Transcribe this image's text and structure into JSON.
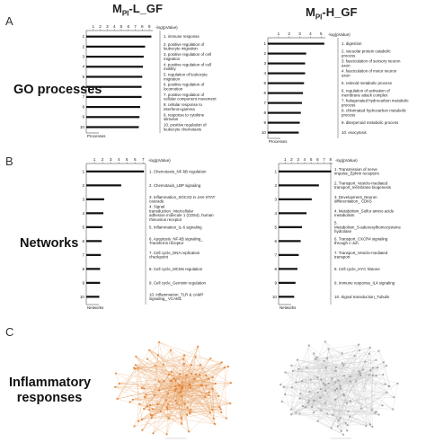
{
  "panels": {
    "a": {
      "letter": "A",
      "row_label": "GO processes"
    },
    "b": {
      "letter": "B",
      "row_label": "Networks"
    },
    "c": {
      "letter": "C",
      "row_label_lines": [
        "Inflammatory",
        "responses"
      ]
    }
  },
  "headers": {
    "left": {
      "m": "M",
      "sub": "PI",
      "suffix": "-L_GF"
    },
    "right": {
      "m": "M",
      "sub": "PI",
      "suffix": "-H_GF"
    }
  },
  "colors": {
    "bar": "#111111",
    "network_orange": "#e07b2a",
    "network_grey": "#9a9a9a",
    "edge": "#c8c8c8"
  },
  "chart_data": [
    {
      "type": "bar",
      "orientation": "horizontal",
      "panel": "A-left",
      "xlabel": "-log(pValue)",
      "footer": "Processes",
      "xticks": [
        "1",
        "2",
        "3",
        "4",
        "5",
        "6",
        "7",
        "8",
        "9"
      ],
      "xlim": [
        0,
        9.5
      ],
      "ranks": [
        "1",
        "2",
        "3",
        "4",
        "5",
        "6",
        "7",
        "8",
        "9",
        "10"
      ],
      "categories": [
        "1. immune response",
        "2. positive regulation of leukocyte migration",
        "3. positive regulation of cell migration",
        "4. positive regulation of cell motility",
        "5. regulation of leukocyte migration",
        "6. positive regulation of locomotion",
        "7. positive regulation of cellular component movement",
        "8. cellular response to interferon-gamma",
        "9. response to cytokine stimulus",
        "10. positive regulation of leukocyte chemotaxis"
      ],
      "values": [
        9.3,
        8.4,
        8.2,
        8.1,
        8.0,
        7.9,
        7.9,
        7.7,
        7.6,
        7.5
      ]
    },
    {
      "type": "bar",
      "orientation": "horizontal",
      "panel": "A-right",
      "xlabel": "-log(pValue)",
      "footer": "Processes",
      "xticks": [
        "1",
        "2",
        "3",
        "4",
        "5"
      ],
      "xlim": [
        0,
        5.4
      ],
      "ranks": [
        "1",
        "2",
        "3",
        "4",
        "5",
        "6",
        "7",
        "8",
        "9",
        "10"
      ],
      "categories": [
        "1. digestion",
        "2. vacuolar protein catabolic process",
        "3. fasciculation of sensory neuron axon",
        "4. fasciculation of motor neuron axon",
        "5. retinoid metabolic process",
        "6. regulation of activation of membrane attack complex",
        "7. halogenated hydrocarbon metabolic process",
        "8. chlorinated hydrocarbon metabolic process",
        "9. diterpenoid metabolic process",
        "10. exocytosis"
      ],
      "values": [
        5.3,
        3.6,
        3.5,
        3.5,
        3.4,
        3.3,
        3.2,
        3.1,
        3.0,
        2.9
      ]
    },
    {
      "type": "bar",
      "orientation": "horizontal",
      "panel": "B-left",
      "xlabel": "-log(pValue)",
      "footer": "Networks",
      "xticks": [
        "1",
        "2",
        "3",
        "4",
        "5",
        "6",
        "7"
      ],
      "xlim": [
        0,
        7.3
      ],
      "ranks": [
        "1",
        "2",
        "3",
        "4",
        "5",
        "6",
        "7",
        "8",
        "9",
        "10"
      ],
      "categories": [
        "1. Chemotaxis_NF-kB regulation",
        "2. Chemotaxis_LBP signaling",
        "3. Inflammation_SOCS3 in JAK-STAT cascade",
        "4. Signal transduction_Intercellular adhesion molecule 1 (CD54), human rhinovirus receptor",
        "5. Inflammation_IL-6 signaling",
        "6. Apoptosis_NF-kB signaling_ Transferrin receptor",
        "7. Cell cycle_DNA replication checkpoint",
        "8. Cell cycle_MCMs regulation",
        "9. Cell cycle_Geminin regulation",
        "10. Inflammation_TLR & cAMP signaling_ VCAM1"
      ],
      "values": [
        7.1,
        4.3,
        2.2,
        2.1,
        2.0,
        1.9,
        1.8,
        1.7,
        1.7,
        1.6
      ]
    },
    {
      "type": "bar",
      "orientation": "horizontal",
      "panel": "B-right",
      "xlabel": "-log(pValue)",
      "footer": "Networks",
      "xticks": [
        "1",
        "2",
        "3",
        "4",
        "5",
        "6",
        "7",
        "8"
      ],
      "xlim": [
        0,
        8.3
      ],
      "ranks": [
        "1",
        "2",
        "3",
        "4",
        "5",
        "6",
        "7",
        "8",
        "9",
        "10"
      ],
      "categories": [
        "1. Transmission of nerve impulse_Ephrin receptors",
        "2. Transport_Vesicle-mediated transport_membrane biogenesis",
        "3. Development_Neuron differentiation_ CDK5",
        "4. Metabolism_Sulfur amino acids metabolism",
        "5. Metabolism_S-adenosylhomocysteine hydrolase",
        "6. Transport_CXCR4 signaling through c-Jun",
        "7. Transport_Vesicle-mediated transport",
        "8. Cell cycle_HYC histone",
        "9. Immune response_IL4 signaling",
        "10. Signal transduction_Tubulin"
      ],
      "values": [
        8.1,
        6.2,
        5.1,
        4.3,
        3.6,
        3.4,
        3.1,
        2.9,
        2.6,
        2.4
      ]
    }
  ]
}
